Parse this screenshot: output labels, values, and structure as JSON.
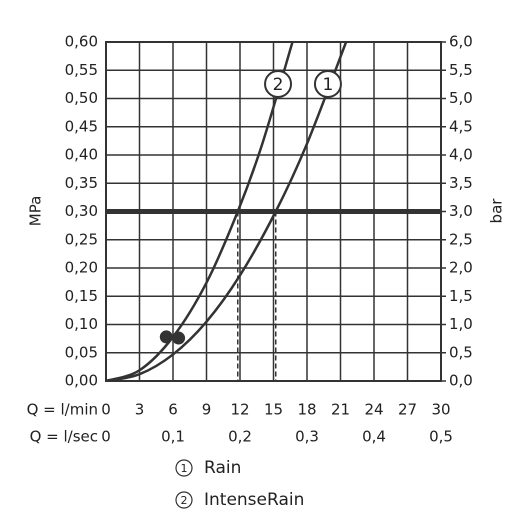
{
  "chart_data": {
    "type": "line",
    "x_label": "Q = l/min",
    "x2_label": "Q = l/sec",
    "y_label": "MPa",
    "y2_label": "bar",
    "xlim": [
      0,
      30
    ],
    "xticks": [
      0,
      3,
      6,
      9,
      12,
      15,
      18,
      21,
      24,
      27,
      30
    ],
    "x2lim": [
      0,
      0.5
    ],
    "x2ticks": [
      0,
      {
        "value": 0.1,
        "label": "0,1"
      },
      {
        "value": 0.2,
        "label": "0,2"
      },
      {
        "value": 0.3,
        "label": "0,3"
      },
      {
        "value": 0.4,
        "label": "0,4"
      },
      {
        "value": 0.5,
        "label": "0,5"
      }
    ],
    "ylim": [
      0,
      0.6
    ],
    "yticks": [
      {
        "value": 0,
        "label": "0,00"
      },
      {
        "value": 0.05,
        "label": "0,05"
      },
      {
        "value": 0.1,
        "label": "0,10"
      },
      {
        "value": 0.15,
        "label": "0,15"
      },
      {
        "value": 0.2,
        "label": "0,20"
      },
      {
        "value": 0.25,
        "label": "0,25"
      },
      {
        "value": 0.3,
        "label": "0,30"
      },
      {
        "value": 0.35,
        "label": "0,35"
      },
      {
        "value": 0.4,
        "label": "0,40"
      },
      {
        "value": 0.45,
        "label": "0,45"
      },
      {
        "value": 0.5,
        "label": "0,50"
      },
      {
        "value": 0.55,
        "label": "0,55"
      },
      {
        "value": 0.6,
        "label": "0,60"
      }
    ],
    "y2lim": [
      0,
      6
    ],
    "y2ticks": [
      {
        "value": 0,
        "label": "0,0"
      },
      {
        "value": 0.5,
        "label": "0,5"
      },
      {
        "value": 1,
        "label": "1,0"
      },
      {
        "value": 1.5,
        "label": "1,5"
      },
      {
        "value": 2,
        "label": "2,0"
      },
      {
        "value": 2.5,
        "label": "2,5"
      },
      {
        "value": 3,
        "label": "3,0"
      },
      {
        "value": 3.5,
        "label": "3,5"
      },
      {
        "value": 4,
        "label": "4,0"
      },
      {
        "value": 4.5,
        "label": "4,5"
      },
      {
        "value": 5,
        "label": "5,0"
      },
      {
        "value": 5.5,
        "label": "5,5"
      },
      {
        "value": 6,
        "label": "6,0"
      }
    ],
    "grid": true,
    "color": "#333333",
    "reference_line": 0.3,
    "series": [
      {
        "name": "Rain",
        "label": "1",
        "x": [
          0,
          3,
          6,
          9,
          12,
          15.2,
          18,
          21.5
        ],
        "values": [
          0,
          0.012,
          0.047,
          0.105,
          0.187,
          0.3,
          0.42,
          0.6
        ],
        "drop_x": 15.2
      },
      {
        "name": "IntenseRain",
        "label": "2",
        "x": [
          0,
          3,
          6,
          9,
          11.8,
          14,
          16.7
        ],
        "values": [
          0,
          0.019,
          0.078,
          0.174,
          0.3,
          0.42,
          0.6
        ],
        "drop_x": 11.8
      }
    ],
    "markers": {
      "x": [
        5.4,
        6.5
      ],
      "values": [
        0.078,
        0.076
      ]
    }
  }
}
